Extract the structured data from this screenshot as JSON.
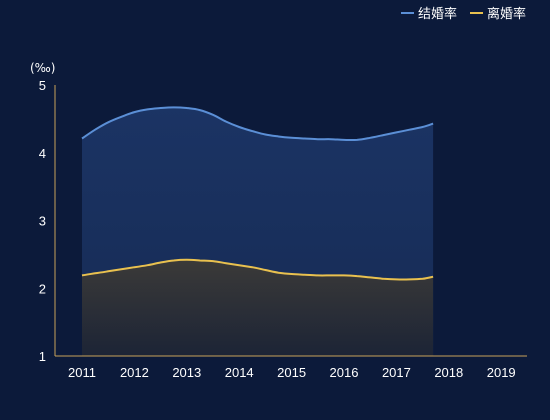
{
  "colors": {
    "background": "#0c1a3a",
    "axis": "#c9a35a",
    "marriage_line": "#5b8fd6",
    "divorce_line": "#e9c14f"
  },
  "chart_data": {
    "type": "area",
    "y_unit": "(‰)",
    "ylim": [
      1,
      5
    ],
    "y_ticks": [
      "1",
      "2",
      "3",
      "4",
      "5"
    ],
    "x_ticks": [
      "2011",
      "2012",
      "2013",
      "2014",
      "2015",
      "2016",
      "2017",
      "2018",
      "2019"
    ],
    "legend_position": "top-right",
    "grid": false,
    "series": [
      {
        "name": "结婚率",
        "color": "#5b8fd6",
        "x": [
          2011,
          2011.25,
          2011.5,
          2011.75,
          2012,
          2012.25,
          2012.5,
          2012.75,
          2013,
          2013.25,
          2013.5,
          2013.75,
          2014,
          2014.25,
          2014.5,
          2014.75,
          2015,
          2015.25,
          2015.5,
          2015.75,
          2016,
          2016.25,
          2016.5,
          2016.75,
          2017,
          2017.25,
          2017.5,
          2017.7
        ],
        "values": [
          4.21,
          4.34,
          4.45,
          4.53,
          4.6,
          4.64,
          4.66,
          4.67,
          4.66,
          4.63,
          4.56,
          4.46,
          4.38,
          4.32,
          4.27,
          4.24,
          4.22,
          4.21,
          4.2,
          4.2,
          4.19,
          4.19,
          4.22,
          4.26,
          4.3,
          4.34,
          4.38,
          4.43
        ]
      },
      {
        "name": "离婚率",
        "color": "#e9c14f",
        "x": [
          2011,
          2011.25,
          2011.5,
          2011.75,
          2012,
          2012.25,
          2012.5,
          2012.75,
          2013,
          2013.25,
          2013.5,
          2013.75,
          2014,
          2014.25,
          2014.5,
          2014.75,
          2015,
          2015.25,
          2015.5,
          2015.75,
          2016,
          2016.25,
          2016.5,
          2016.75,
          2017,
          2017.25,
          2017.5,
          2017.7
        ],
        "values": [
          2.19,
          2.22,
          2.25,
          2.28,
          2.31,
          2.34,
          2.38,
          2.41,
          2.42,
          2.41,
          2.4,
          2.37,
          2.34,
          2.31,
          2.27,
          2.23,
          2.21,
          2.2,
          2.19,
          2.19,
          2.19,
          2.18,
          2.16,
          2.14,
          2.13,
          2.13,
          2.14,
          2.17
        ]
      }
    ]
  }
}
